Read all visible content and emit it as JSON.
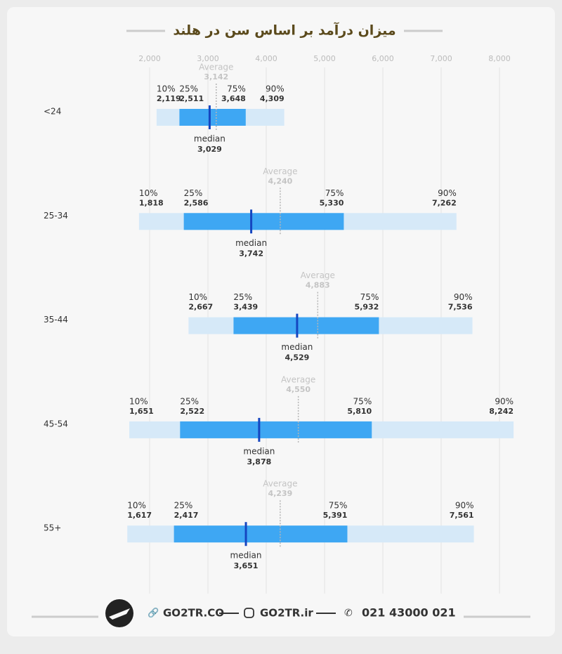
{
  "chart_data": {
    "type": "percentile-range",
    "title": "میزان درآمد بر اساس سن در هلند",
    "categories": [
      "<24",
      "25-34",
      "35-44",
      "45-54",
      "55+"
    ],
    "xlim": [
      1500,
      8500
    ],
    "xticks": [
      {
        "value": 2000,
        "label": "2,000"
      },
      {
        "value": 3000,
        "label": "3,000"
      },
      {
        "value": 4000,
        "label": "4,000"
      },
      {
        "value": 5000,
        "label": "5,000"
      },
      {
        "value": 6000,
        "label": "6,000"
      },
      {
        "value": 7000,
        "label": "7,000"
      },
      {
        "value": 8000,
        "label": "8,000"
      }
    ],
    "grid": true,
    "series": [
      {
        "name": "10%",
        "color": "#d6e9f8",
        "values": [
          2119,
          1818,
          2667,
          1651,
          1617
        ],
        "value_labels": [
          "2,119",
          "1,818",
          "2,667",
          "1,651",
          "1,617"
        ]
      },
      {
        "name": "25%",
        "color": "#3ea7f3",
        "values": [
          2511,
          2586,
          3439,
          2522,
          2417
        ],
        "value_labels": [
          "2,511",
          "2,586",
          "3,439",
          "2,522",
          "2,417"
        ]
      },
      {
        "name": "median",
        "color": "#1546c0",
        "values": [
          3029,
          3742,
          4529,
          3878,
          3651
        ],
        "value_labels": [
          "3,029",
          "3,742",
          "4,529",
          "3,878",
          "3,651"
        ]
      },
      {
        "name": "75%",
        "color": "#3ea7f3",
        "values": [
          3648,
          5330,
          5932,
          5810,
          5391
        ],
        "value_labels": [
          "3,648",
          "5,330",
          "5,932",
          "5,810",
          "5,391"
        ]
      },
      {
        "name": "90%",
        "color": "#d6e9f8",
        "values": [
          4309,
          7262,
          7536,
          8242,
          7561
        ],
        "value_labels": [
          "4,309",
          "7,262",
          "7,536",
          "8,242",
          "7,561"
        ]
      },
      {
        "name": "Average",
        "color": "#b5b5b5",
        "values": [
          3142,
          4240,
          4883,
          4550,
          4239
        ],
        "value_labels": [
          "3,142",
          "4,240",
          "4,883",
          "4,550",
          "4,239"
        ]
      }
    ]
  },
  "footer": {
    "site": "GO2TR.CO",
    "instagram": "GO2TR.ir",
    "phone": "021 43000 021"
  }
}
